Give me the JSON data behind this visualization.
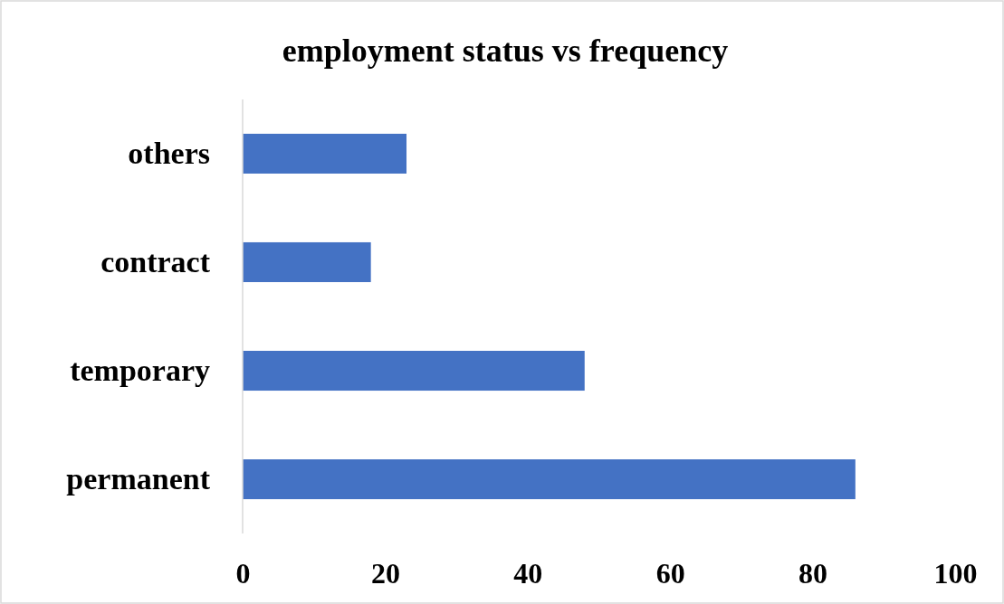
{
  "chart_data": {
    "type": "bar",
    "orientation": "horizontal",
    "title": "employment status vs frequency",
    "categories": [
      "others",
      "contract",
      "temporary",
      "permanent"
    ],
    "values": [
      23,
      18,
      48,
      86
    ],
    "color": "#4472c4",
    "xlim": [
      0,
      100
    ],
    "xticks": [
      0,
      20,
      40,
      60,
      80,
      100
    ],
    "grid": false
  }
}
